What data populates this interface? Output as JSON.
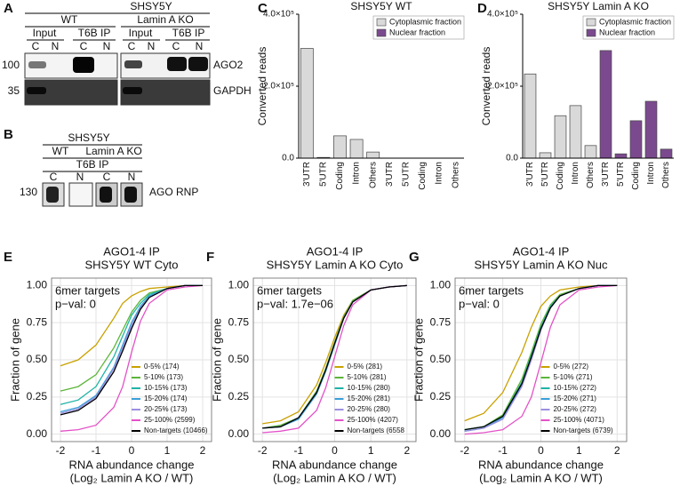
{
  "panel_labels": [
    "A",
    "B",
    "C",
    "D",
    "E",
    "F",
    "G"
  ],
  "blot_a": {
    "cell_line": "SHSY5Y",
    "groups": [
      "WT",
      "Lamin A KO"
    ],
    "subgroups": [
      "Input",
      "T6B IP",
      "Input",
      "T6B IP"
    ],
    "lanes": [
      "C",
      "N",
      "C",
      "N",
      "C",
      "N",
      "C",
      "N"
    ],
    "markers": [
      100,
      35
    ],
    "proteins": [
      "AGO2",
      "GAPDH"
    ]
  },
  "blot_b": {
    "cell_line": "SHSY5Y",
    "groups": [
      "WT",
      "Lamin A KO"
    ],
    "ip": "T6B IP",
    "lanes": [
      "C",
      "N",
      "C",
      "N"
    ],
    "marker": 130,
    "protein": "AGO RNP"
  },
  "chart_data": [
    {
      "type": "bar",
      "title": "SHSY5Y WT",
      "ylabel": "Converted reads",
      "categories": [
        "3'UTR",
        "5'UTR",
        "Coding",
        "Intron",
        "Others",
        "3'UTR",
        "5'UTR",
        "Coding",
        "Intron",
        "Others"
      ],
      "series": [
        {
          "name": "Cytoplasmic fraction",
          "color": "#d9d9d9",
          "values": [
            305000,
            2000,
            62000,
            52000,
            17000,
            null,
            null,
            null,
            null,
            null
          ]
        },
        {
          "name": "Nuclear fraction",
          "color": "#7b4a8e",
          "values": [
            null,
            null,
            null,
            null,
            null,
            0,
            0,
            0,
            0,
            0
          ]
        }
      ],
      "ylim": [
        0,
        400000
      ],
      "yticks": [
        {
          "value": 0,
          "label": "0.0"
        },
        {
          "value": 200000,
          "label": "2.0×10⁵"
        },
        {
          "value": 400000,
          "label": "4.0×10⁵"
        }
      ],
      "legend": "upper right"
    },
    {
      "type": "bar",
      "title": "SHSY5Y Lamin A KO",
      "ylabel": "Converted reads",
      "categories": [
        "3'UTR",
        "5'UTR",
        "Coding",
        "Intron",
        "Others",
        "3'UTR",
        "5'UTR",
        "Coding",
        "Intron",
        "Others"
      ],
      "series": [
        {
          "name": "Cytoplasmic fraction",
          "color": "#d9d9d9",
          "values": [
            234000,
            15000,
            118000,
            146000,
            35000,
            null,
            null,
            null,
            null,
            null
          ]
        },
        {
          "name": "Nuclear fraction",
          "color": "#7b4a8e",
          "values": [
            null,
            null,
            null,
            null,
            null,
            299000,
            12000,
            104000,
            158000,
            25000
          ]
        }
      ],
      "ylim": [
        0,
        400000
      ],
      "yticks": [
        {
          "value": 0,
          "label": "0.0"
        },
        {
          "value": 200000,
          "label": "2.0×10⁵"
        },
        {
          "value": 400000,
          "label": "4.0×10⁵"
        }
      ],
      "legend": "upper right"
    },
    {
      "type": "line",
      "title": "AGO1-4 IP",
      "subtitle": "SHSY5Y WT Cyto",
      "ylabel": "Fraction of gene",
      "xlabel": [
        "RNA abundance change",
        "(Log₂ Lamin A KO / WT)"
      ],
      "annotations": [
        "6mer targets",
        "p−val: 0"
      ],
      "x": [
        -2,
        -1.5,
        -1,
        -0.5,
        -0.25,
        0,
        0.25,
        0.5,
        1,
        1.5,
        2
      ],
      "series": [
        {
          "name": "0-5% (174)",
          "color": "#c9a100",
          "values": [
            0.46,
            0.5,
            0.6,
            0.78,
            0.88,
            0.93,
            0.96,
            0.98,
            0.99,
            1,
            1
          ]
        },
        {
          "name": "5-10% (173)",
          "color": "#5cb53a",
          "values": [
            0.29,
            0.32,
            0.4,
            0.58,
            0.7,
            0.82,
            0.9,
            0.95,
            0.98,
            1,
            1
          ]
        },
        {
          "name": "10-15% (173)",
          "color": "#1fb3a6",
          "values": [
            0.2,
            0.23,
            0.32,
            0.52,
            0.66,
            0.8,
            0.88,
            0.94,
            0.98,
            1,
            1
          ]
        },
        {
          "name": "15-20% (174)",
          "color": "#3a9fd8",
          "values": [
            0.15,
            0.18,
            0.26,
            0.45,
            0.6,
            0.75,
            0.86,
            0.93,
            0.98,
            1,
            1
          ]
        },
        {
          "name": "20-25% (173)",
          "color": "#9b8fe0",
          "values": [
            0.14,
            0.17,
            0.25,
            0.44,
            0.58,
            0.73,
            0.85,
            0.92,
            0.98,
            1,
            1
          ]
        },
        {
          "name": "25-100% (2599)",
          "color": "#e352c8",
          "values": [
            0.02,
            0.03,
            0.06,
            0.18,
            0.32,
            0.55,
            0.76,
            0.88,
            0.97,
            0.99,
            1
          ]
        },
        {
          "name": "Non-targets (10466)",
          "color": "#000000",
          "values": [
            0.13,
            0.16,
            0.24,
            0.42,
            0.56,
            0.71,
            0.84,
            0.92,
            0.98,
            1,
            1
          ]
        }
      ],
      "xlim": [
        -2.25,
        2.25
      ],
      "xticks": [
        -2,
        -1,
        0,
        1,
        2
      ],
      "ylim": [
        -0.05,
        1.05
      ],
      "yticks": [
        {
          "value": 0,
          "label": "0.00"
        },
        0.25,
        {
          "value": 0.5,
          "label": "0.50"
        },
        0.75,
        {
          "value": 1,
          "label": "1.00"
        }
      ],
      "grid": true,
      "legend": "lower right"
    },
    {
      "type": "line",
      "title": "AGO1-4 IP",
      "subtitle": "SHSY5Y Lamin A KO Cyto",
      "ylabel": "Fraction of gene",
      "xlabel": [
        "RNA abundance change",
        "(Log₂ Lamin A KO / WT)"
      ],
      "annotations": [
        "6mer targets",
        "p−val: 1.7e−06"
      ],
      "x": [
        -2,
        -1.5,
        -1,
        -0.5,
        -0.25,
        0,
        0.25,
        0.5,
        1,
        1.5,
        2
      ],
      "series": [
        {
          "name": "0-5% (281)",
          "color": "#c9a100",
          "values": [
            0.07,
            0.09,
            0.15,
            0.33,
            0.48,
            0.65,
            0.8,
            0.9,
            0.97,
            0.99,
            1
          ]
        },
        {
          "name": "5-10% (281)",
          "color": "#5cb53a",
          "values": [
            0.04,
            0.06,
            0.11,
            0.29,
            0.44,
            0.62,
            0.79,
            0.9,
            0.97,
            0.99,
            1
          ]
        },
        {
          "name": "10-15% (280)",
          "color": "#1fb3a6",
          "values": [
            0.04,
            0.05,
            0.11,
            0.28,
            0.43,
            0.61,
            0.78,
            0.89,
            0.97,
            0.99,
            1
          ]
        },
        {
          "name": "15-20% (281)",
          "color": "#3a9fd8",
          "values": [
            0.04,
            0.05,
            0.1,
            0.27,
            0.42,
            0.6,
            0.78,
            0.89,
            0.97,
            0.99,
            1
          ]
        },
        {
          "name": "20-25% (280)",
          "color": "#9b8fe0",
          "values": [
            0.04,
            0.05,
            0.11,
            0.28,
            0.43,
            0.61,
            0.78,
            0.89,
            0.97,
            0.99,
            1
          ]
        },
        {
          "name": "25-100% (4207)",
          "color": "#e352c8",
          "values": [
            0.01,
            0.02,
            0.04,
            0.16,
            0.31,
            0.52,
            0.73,
            0.87,
            0.97,
            0.99,
            1
          ]
        },
        {
          "name": "Non-targets (6558",
          "color": "#000000",
          "values": [
            0.04,
            0.05,
            0.11,
            0.28,
            0.43,
            0.61,
            0.78,
            0.89,
            0.97,
            0.99,
            1
          ]
        }
      ],
      "xlim": [
        -2.25,
        2.25
      ],
      "xticks": [
        -2,
        -1,
        0,
        1,
        2
      ],
      "ylim": [
        -0.05,
        1.05
      ],
      "yticks": [
        {
          "value": 0,
          "label": "0.00"
        },
        0.25,
        {
          "value": 0.5,
          "label": "0.50"
        },
        0.75,
        {
          "value": 1,
          "label": "1.00"
        }
      ],
      "grid": true,
      "legend": "lower right"
    },
    {
      "type": "line",
      "title": "AGO1-4 IP",
      "subtitle": "SHSY5Y Lamin A KO Nuc",
      "ylabel": "Fraction of gene",
      "xlabel": [
        "RNA abundance change",
        "(Log₂ Lamin A KO / WT)"
      ],
      "annotations": [
        "6mer targets",
        "p−val: 0"
      ],
      "x": [
        -2,
        -1.5,
        -1,
        -0.5,
        -0.25,
        0,
        0.25,
        0.5,
        1,
        1.5,
        2
      ],
      "series": [
        {
          "name": "0-5% (272)",
          "color": "#c9a100",
          "values": [
            0.09,
            0.14,
            0.28,
            0.55,
            0.72,
            0.86,
            0.93,
            0.97,
            0.99,
            1,
            1
          ]
        },
        {
          "name": "5-10% (271)",
          "color": "#5cb53a",
          "values": [
            0.03,
            0.05,
            0.13,
            0.37,
            0.55,
            0.74,
            0.87,
            0.94,
            0.98,
            1,
            1
          ]
        },
        {
          "name": "10-15% (272)",
          "color": "#1fb3a6",
          "values": [
            0.03,
            0.05,
            0.12,
            0.35,
            0.53,
            0.72,
            0.86,
            0.93,
            0.98,
            1,
            1
          ]
        },
        {
          "name": "15-20% (271)",
          "color": "#3a9fd8",
          "values": [
            0.02,
            0.04,
            0.11,
            0.33,
            0.51,
            0.71,
            0.85,
            0.93,
            0.98,
            1,
            1
          ]
        },
        {
          "name": "20-25% (272)",
          "color": "#9b8fe0",
          "values": [
            0.02,
            0.04,
            0.1,
            0.32,
            0.5,
            0.7,
            0.85,
            0.93,
            0.98,
            1,
            1
          ]
        },
        {
          "name": "25-100% (4071)",
          "color": "#e352c8",
          "values": [
            0,
            0.01,
            0.03,
            0.12,
            0.25,
            0.48,
            0.72,
            0.87,
            0.97,
            0.99,
            1
          ]
        },
        {
          "name": "Non-targets (6739)",
          "color": "#000000",
          "values": [
            0.03,
            0.05,
            0.12,
            0.34,
            0.52,
            0.71,
            0.85,
            0.93,
            0.98,
            1,
            1
          ]
        }
      ],
      "xlim": [
        -2.25,
        2.25
      ],
      "xticks": [
        -2,
        -1,
        0,
        1,
        2
      ],
      "ylim": [
        -0.05,
        1.05
      ],
      "yticks": [
        {
          "value": 0,
          "label": "0.00"
        },
        0.25,
        {
          "value": 0.5,
          "label": "0.50"
        },
        0.75,
        {
          "value": 1,
          "label": "1.00"
        }
      ],
      "grid": true,
      "legend": "lower right"
    }
  ]
}
